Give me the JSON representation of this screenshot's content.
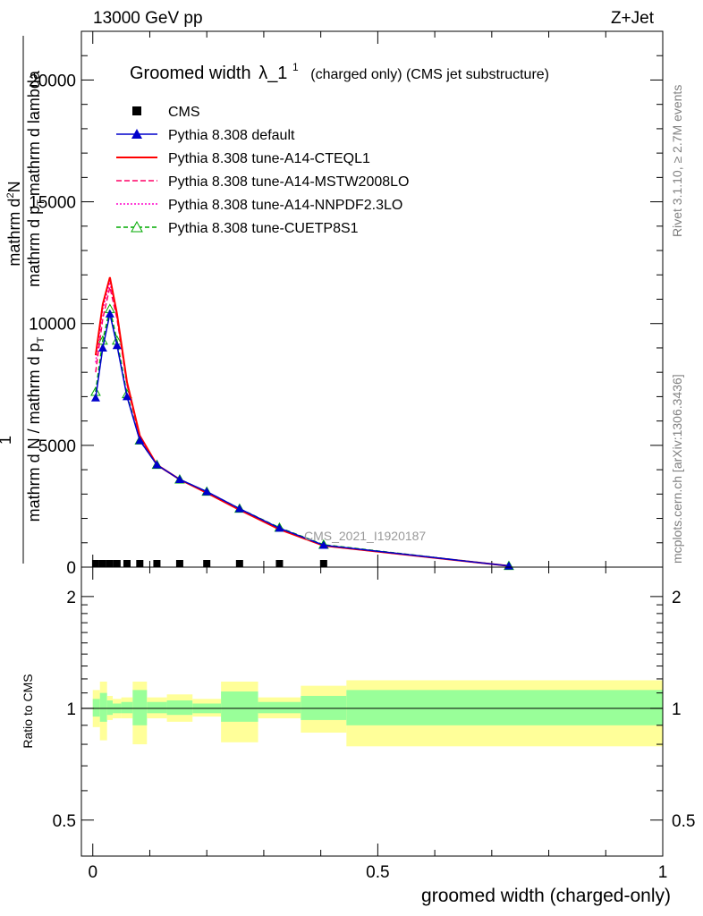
{
  "header": {
    "left": "13000 GeV pp",
    "right": "Z+Jet"
  },
  "side_labels": {
    "rivet": "Rivet 3.1.10, ≥ 2.7M events",
    "mcplots": "mcplots.cern.ch [arXiv:1306.3436]"
  },
  "watermark": "CMS_2021_I1920187",
  "colors": {
    "data": "#000000",
    "default": "#0000cc",
    "cteql1": "#ff0000",
    "mstw": "#ff0066",
    "nnpdf": "#ff00cc",
    "cuetp8s1": "#00aa00",
    "band_inner": "#99ff99",
    "band_outer": "#ffff99"
  },
  "chart_data": [
    {
      "type": "line",
      "title_main": "Groomed width",
      "title_lambda": "λ_1",
      "title_sup": "1",
      "title_rest": "(charged only) (CMS jet substructure)",
      "ylabel_top": "1",
      "ylabel_numerator": "mathrm d",
      "ylabel_num_sup": "2",
      "ylabel_num_tail": "N",
      "ylabel_line2_a": "mathrm d p",
      "ylabel_line2_sub": "T",
      "ylabel_line2_b": "mathrm d lambda",
      "ylabel_denominator": "mathrm d N / mathrm d p",
      "ylabel_den_sub": "T",
      "ylim": [
        0,
        22000
      ],
      "xlim": [
        -0.02,
        1.0
      ],
      "yticks": [
        {
          "value": 0,
          "label": "0"
        },
        {
          "value": 5000,
          "label": "5000"
        },
        {
          "value": 10000,
          "label": "10000"
        },
        {
          "value": 15000,
          "label": "15000"
        },
        {
          "value": 20000,
          "label": "20000"
        }
      ],
      "legend": [
        {
          "key": "data",
          "label": "CMS",
          "marker": "square",
          "dash": ""
        },
        {
          "key": "default",
          "label": "Pythia 8.308 default",
          "marker": "triangle",
          "dash": ""
        },
        {
          "key": "cteql1",
          "label": "Pythia 8.308 tune-A14-CTEQL1",
          "marker": "none",
          "dash": ""
        },
        {
          "key": "mstw",
          "label": "Pythia 8.308 tune-A14-MSTW2008LO",
          "marker": "none",
          "dash": "6,3"
        },
        {
          "key": "nnpdf",
          "label": "Pythia 8.308 tune-A14-NNPDF2.3LO",
          "marker": "none",
          "dash": "2,2"
        },
        {
          "key": "cuetp8s1",
          "label": "Pythia 8.308 tune-CUETP8S1",
          "marker": "open-triangle",
          "dash": "5,3"
        }
      ],
      "x": [
        0.005,
        0.0175,
        0.03,
        0.0425,
        0.06,
        0.0825,
        0.1125,
        0.1525,
        0.2,
        0.2575,
        0.3275,
        0.405,
        0.73
      ],
      "data_points": {
        "x": [
          0.005,
          0.0175,
          0.03,
          0.0425,
          0.06,
          0.0825,
          0.1125,
          0.1525,
          0.2,
          0.2575,
          0.3275,
          0.405
        ],
        "y": [
          40,
          40,
          40,
          40,
          40,
          40,
          40,
          40,
          40,
          40,
          40,
          40
        ]
      },
      "series": [
        {
          "key": "default",
          "values": [
            6950,
            9000,
            10400,
            9100,
            7000,
            5200,
            4200,
            3600,
            3100,
            2400,
            1600,
            900,
            50
          ]
        },
        {
          "key": "cteql1",
          "values": [
            8700,
            10800,
            11900,
            10400,
            7600,
            5400,
            4200,
            3600,
            3050,
            2350,
            1550,
            880,
            50
          ]
        },
        {
          "key": "mstw",
          "values": [
            8000,
            10200,
            11500,
            10200,
            7500,
            5300,
            4200,
            3600,
            3050,
            2350,
            1580,
            880,
            50
          ]
        },
        {
          "key": "nnpdf",
          "values": [
            8400,
            10600,
            11700,
            10300,
            7600,
            5300,
            4200,
            3600,
            3050,
            2350,
            1560,
            880,
            50
          ]
        },
        {
          "key": "cuetp8s1",
          "values": [
            7200,
            9300,
            10600,
            9300,
            7100,
            5200,
            4200,
            3600,
            3100,
            2400,
            1620,
            920,
            50
          ]
        }
      ]
    },
    {
      "type": "area",
      "ylabel": "Ratio to CMS",
      "xlabel": "groomed width (charged-only)",
      "ylim": [
        0.4,
        2.4
      ],
      "log_y": true,
      "yticks": [
        {
          "value": 0.5,
          "label": "0.5"
        },
        {
          "value": 1,
          "label": "1"
        },
        {
          "value": 2,
          "label": "2"
        }
      ],
      "xticks": [
        {
          "value": 0,
          "label": "0"
        },
        {
          "value": 0.5,
          "label": "0.5"
        },
        {
          "value": 1,
          "label": "1"
        }
      ],
      "bins": [
        {
          "lo": 0.0,
          "hi": 0.0125,
          "inner": [
            0.95,
            1.06
          ],
          "outer": [
            0.89,
            1.12
          ]
        },
        {
          "lo": 0.0125,
          "hi": 0.025,
          "inner": [
            0.92,
            1.1
          ],
          "outer": [
            0.82,
            1.18
          ]
        },
        {
          "lo": 0.025,
          "hi": 0.035,
          "inner": [
            0.96,
            1.05
          ],
          "outer": [
            0.93,
            1.08
          ]
        },
        {
          "lo": 0.035,
          "hi": 0.05,
          "inner": [
            0.97,
            1.03
          ],
          "outer": [
            0.94,
            1.06
          ]
        },
        {
          "lo": 0.05,
          "hi": 0.07,
          "inner": [
            0.97,
            1.04
          ],
          "outer": [
            0.94,
            1.07
          ]
        },
        {
          "lo": 0.07,
          "hi": 0.095,
          "inner": [
            0.9,
            1.12
          ],
          "outer": [
            0.8,
            1.18
          ]
        },
        {
          "lo": 0.095,
          "hi": 0.13,
          "inner": [
            0.97,
            1.04
          ],
          "outer": [
            0.94,
            1.07
          ]
        },
        {
          "lo": 0.13,
          "hi": 0.175,
          "inner": [
            0.96,
            1.05
          ],
          "outer": [
            0.92,
            1.09
          ]
        },
        {
          "lo": 0.175,
          "hi": 0.225,
          "inner": [
            0.97,
            1.03
          ],
          "outer": [
            0.95,
            1.06
          ]
        },
        {
          "lo": 0.225,
          "hi": 0.29,
          "inner": [
            0.92,
            1.11
          ],
          "outer": [
            0.81,
            1.18
          ]
        },
        {
          "lo": 0.29,
          "hi": 0.365,
          "inner": [
            0.97,
            1.04
          ],
          "outer": [
            0.94,
            1.07
          ]
        },
        {
          "lo": 0.365,
          "hi": 0.445,
          "inner": [
            0.93,
            1.08
          ],
          "outer": [
            0.86,
            1.15
          ]
        },
        {
          "lo": 0.445,
          "hi": 1.0,
          "inner": [
            0.9,
            1.12
          ],
          "outer": [
            0.79,
            1.19
          ]
        }
      ]
    }
  ]
}
